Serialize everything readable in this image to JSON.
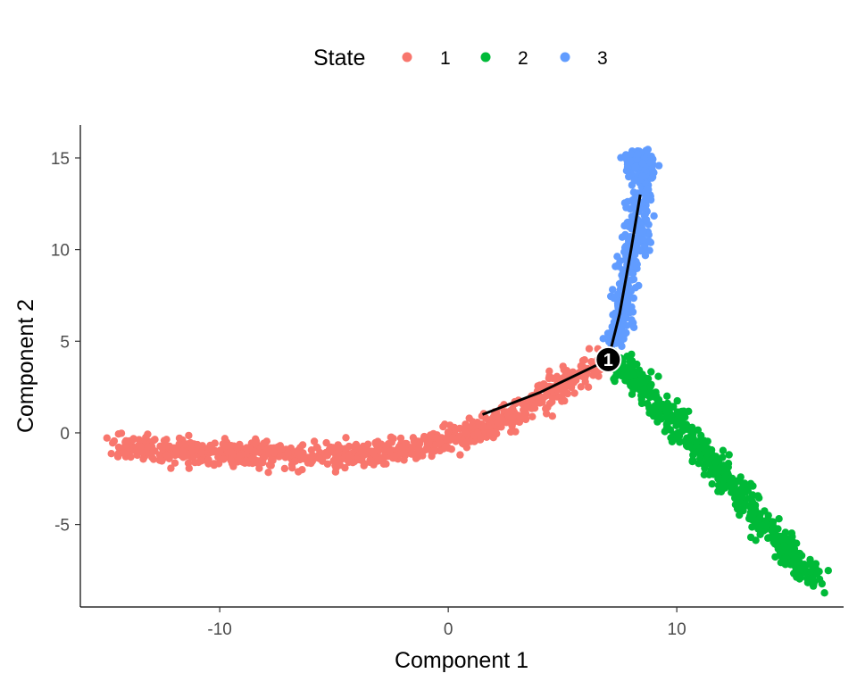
{
  "chart_data": {
    "type": "scatter",
    "xlabel": "Component 1",
    "ylabel": "Component 2",
    "xlim": [
      -16.1,
      17.3
    ],
    "ylim": [
      -9.5,
      16.8
    ],
    "x_ticks": [
      -10,
      0,
      10
    ],
    "y_ticks": [
      -5,
      0,
      5,
      10,
      15
    ],
    "x_tick_labels": [
      "-10",
      "0",
      "10"
    ],
    "y_tick_labels": [
      "-5",
      "0",
      "5",
      "10",
      "15"
    ],
    "grid": false,
    "legend": {
      "title": "State",
      "placement": "top",
      "entries": [
        "1",
        "2",
        "3"
      ]
    },
    "series": [
      {
        "name": "1",
        "color": "#F8766D",
        "trend": [
          [
            -14.5,
            -0.7
          ],
          [
            -12,
            -1.0
          ],
          [
            -9,
            -1.1
          ],
          [
            -6,
            -1.3
          ],
          [
            -3,
            -1.1
          ],
          [
            -1,
            -0.7
          ],
          [
            1,
            0.0
          ],
          [
            2.5,
            0.8
          ],
          [
            4,
            1.8
          ],
          [
            5.5,
            2.9
          ],
          [
            6.7,
            3.8
          ]
        ]
      },
      {
        "name": "2",
        "color": "#00BA38",
        "trend": [
          [
            7.3,
            4.0
          ],
          [
            8.5,
            2.5
          ],
          [
            10,
            0.5
          ],
          [
            11.5,
            -1.5
          ],
          [
            13,
            -3.7
          ],
          [
            14.5,
            -6.0
          ],
          [
            15.5,
            -7.5
          ],
          [
            16.2,
            -8.1
          ]
        ]
      },
      {
        "name": "3",
        "color": "#619CFF",
        "trend": [
          [
            7.3,
            4.8
          ],
          [
            7.7,
            7.0
          ],
          [
            8.0,
            9.5
          ],
          [
            8.3,
            11.5
          ],
          [
            8.5,
            13.5
          ],
          [
            8.6,
            15.2
          ],
          [
            7.8,
            14.5
          ]
        ]
      }
    ],
    "trajectory": [
      [
        1.5,
        1.0
      ],
      [
        4.0,
        2.2
      ],
      [
        7.0,
        4.0
      ],
      [
        7.5,
        6.5
      ],
      [
        8.0,
        10.0
      ],
      [
        8.4,
        13.0
      ]
    ],
    "branch_points": [
      {
        "label": "1",
        "x": 7.0,
        "y": 4.0
      }
    ]
  }
}
